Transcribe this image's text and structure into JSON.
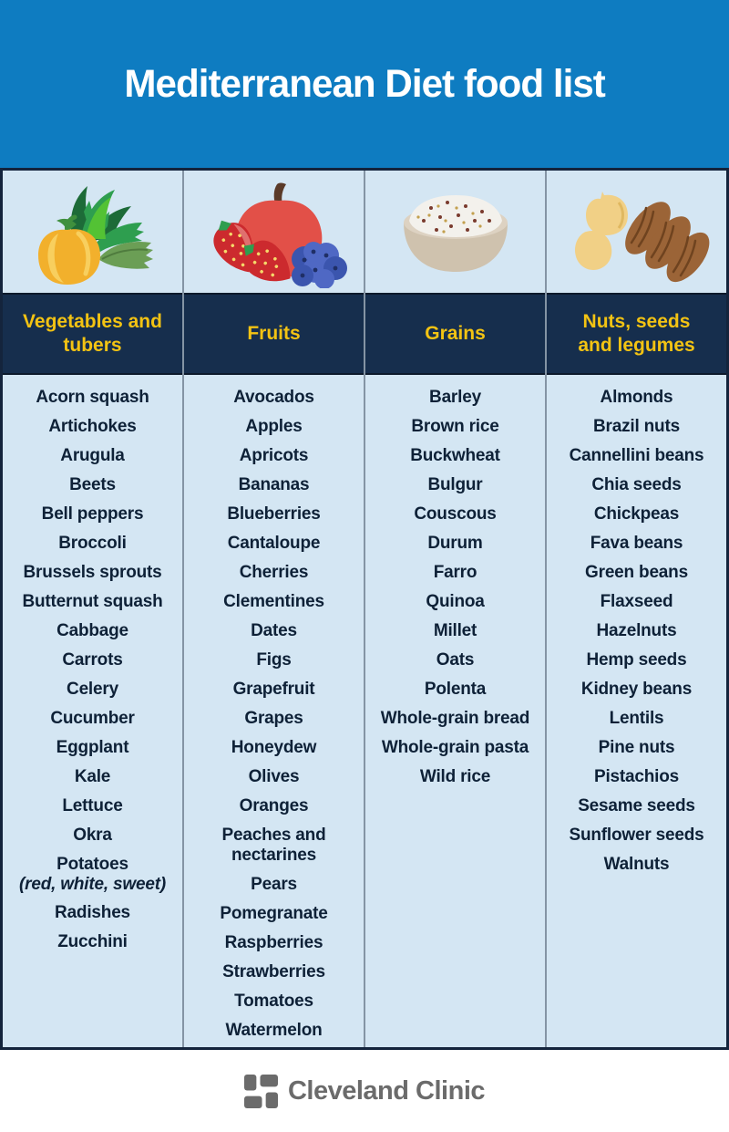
{
  "banner": {
    "title": "Mediterranean Diet food list",
    "bg_color": "#0e7cc1",
    "text_color": "#ffffff"
  },
  "table": {
    "header_bg_color": "#162e4d",
    "header_text_color": "#f3c313",
    "body_bg_color": "#d4e6f3",
    "item_text_color": "#0e2137",
    "divider_color": "#8494a4",
    "columns": [
      {
        "header": "Vegetables and tubers",
        "illustration": "vegetables-illustration",
        "items": [
          "Acorn squash",
          "Artichokes",
          "Arugula",
          "Beets",
          "Bell peppers",
          "Broccoli",
          "Brussels sprouts",
          "Butternut squash",
          "Cabbage",
          "Carrots",
          "Celery",
          "Cucumber",
          "Eggplant",
          "Kale",
          "Lettuce",
          "Okra",
          {
            "label": "Potatoes",
            "note": "(red, white, sweet)"
          },
          "Radishes",
          "Zucchini"
        ]
      },
      {
        "header": "Fruits",
        "illustration": "fruits-illustration",
        "items": [
          "Avocados",
          "Apples",
          "Apricots",
          "Bananas",
          "Blueberries",
          "Cantaloupe",
          "Cherries",
          "Clementines",
          "Dates",
          "Figs",
          "Grapefruit",
          "Grapes",
          "Honeydew",
          "Olives",
          "Oranges",
          "Peaches and nectarines",
          "Pears",
          "Pomegranate",
          "Raspberries",
          "Strawberries",
          "Tomatoes",
          "Watermelon"
        ]
      },
      {
        "header": "Grains",
        "illustration": "grains-bowl-illustration",
        "items": [
          "Barley",
          "Brown rice",
          "Buckwheat",
          "Bulgur",
          "Couscous",
          "Durum",
          "Farro",
          "Quinoa",
          "Millet",
          "Oats",
          "Polenta",
          "Whole-grain bread",
          "Whole-grain pasta",
          "Wild rice"
        ]
      },
      {
        "header": "Nuts, seeds and legumes",
        "illustration": "nuts-illustration",
        "items": [
          "Almonds",
          "Brazil nuts",
          "Cannellini beans",
          "Chia seeds",
          "Chickpeas",
          "Fava beans",
          "Green beans",
          "Flaxseed",
          "Hazelnuts",
          "Hemp seeds",
          "Kidney beans",
          "Lentils",
          "Pine nuts",
          "Pistachios",
          "Sesame seeds",
          "Sunflower seeds",
          "Walnuts"
        ]
      }
    ]
  },
  "footer": {
    "brand": "Cleveland Clinic",
    "logo_color": "#6b6b6b"
  }
}
